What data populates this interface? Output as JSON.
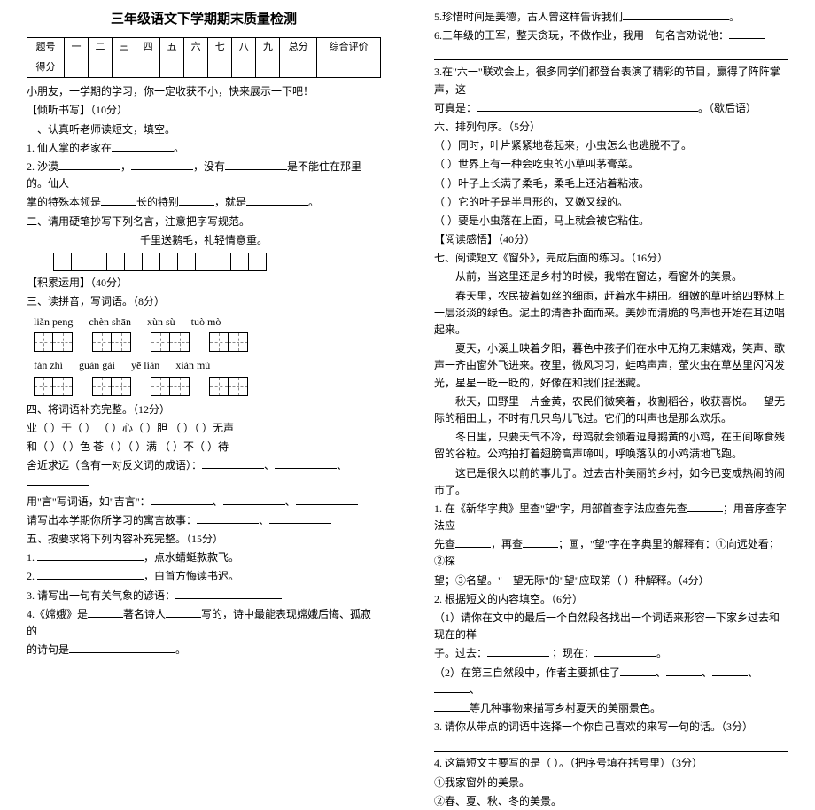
{
  "title": "三年级语文下学期期末质量检测",
  "scoreTable": {
    "row1": [
      "题号",
      "一",
      "二",
      "三",
      "四",
      "五",
      "六",
      "七",
      "八",
      "九",
      "总分",
      "综合评价"
    ],
    "row2Label": "得分"
  },
  "left": {
    "intro": "小朋友，一学期的学习，你一定收获不小，快来展示一下吧！",
    "s1_head": "【倾听书写】（10分）",
    "s1_1": "一、认真听老师读短文，填空。",
    "s1_l1a": "1. 仙人掌的老家在",
    "s1_l1b": "。",
    "s1_l2a": "2. 沙漠",
    "s1_l2b": "，",
    "s1_l2c": "，没有",
    "s1_l2d": "是不能住在那里的。仙人",
    "s1_l3a": "掌的特殊本领是",
    "s1_l3b": "长的特别",
    "s1_l3c": "，就是",
    "s1_l3d": "。",
    "s1_2": "二、请用硬笔抄写下列名言，注意把字写规范。",
    "poem": "千里送鹅毛，礼轻情意重。",
    "s2_head": "【积累运用】（40分）",
    "s2_3": "三、读拼音，写词语。（8分）",
    "pinyin1": [
      "liǎn  peng",
      "chèn  shān",
      "xùn  sù",
      "tuò  mò"
    ],
    "pinyin2": [
      "fán  zhí",
      "guàn gài",
      "yē  liàn",
      "xiàn  mù"
    ],
    "s2_4": "四、将词语补充完整。（12分）",
    "l4_1": "业（   ）于（   ）     （   ）心（   ）胆     （   ）（   ）无声",
    "l4_2": "和（   ）（   ）色     苍（   ）（   ）满     （   ）不（   ）待",
    "l4_3a": "舍近求远（含有一对反义词的成语）：",
    "l4_4a": "用\"言\"写词语，如\"吉言\"：",
    "l4_5": "请写出本学期你所学习的寓言故事：",
    "s2_5": "五、按要求将下列内容补充完整。（15分）",
    "l5_1a": "1. ",
    "l5_1b": "，点水蜻蜓款款飞。",
    "l5_2a": "2. ",
    "l5_2b": "，白首方悔读书迟。",
    "l5_3a": "3. 请写出一句有关气象的谚语：",
    "l5_4a": "4.《嫦娥》是",
    "l5_4b": "著名诗人",
    "l5_4c": "写的，诗中最能表现嫦娥后悔、孤寂的",
    "l5_4d": "的诗句是",
    "l5_4e": "。"
  },
  "right": {
    "l5_5": "5.珍惜时间是美德，古人曾这样告诉我们",
    "l5_5b": "。",
    "l5_6a": "6.三年级的王军，整天贪玩，不做作业，我用一句名言劝说他：",
    "l5_7a": "3.在\"六一\"联欢会上，很多同学们都登台表演了精彩的节目，赢得了阵阵掌声，这",
    "l5_7b": "可真是：",
    "l5_7c": "。（歇后语）",
    "s6_head": "六、排列句序。（5分）",
    "ord1": "（     ）同时，叶片紧紧地卷起来，小虫怎么也逃脱不了。",
    "ord2": "（     ）世界上有一种会吃虫的小草叫茅膏菜。",
    "ord3": "（     ）叶子上长满了柔毛，柔毛上还沾着粘液。",
    "ord4": "（     ）它的叶子是半月形的，又嫩又绿的。",
    "ord5": "（     ）要是小虫落在上面，马上就会被它粘住。",
    "s7_head": "【阅读感悟】（40分）",
    "s7_1": "七、阅读短文《窗外》，完成后面的练习。（16分）",
    "p1": "从前，当这里还是乡村的时候，我常在窗边，看窗外的美景。",
    "p2": "春天里，农民披着如丝的细雨，赶着水牛耕田。细嫩的草叶给四野林上一层淡淡的绿色。泥土的清香扑面而来。美妙而清脆的鸟声也开始在耳边唱起来。",
    "p3": "夏天，小溪上映着夕阳，暮色中孩子们在水中无拘无束嬉戏，笑声、歌声一齐由窗外飞进来。夜里，微风习习，蛙鸣声声，萤火虫在草丛里闪闪发光，星星一眨一眨的，好像在和我们捉迷藏。",
    "p4": "秋天，田野里一片金黄，农民们微笑着，收割稻谷，收获喜悦。一望无际的稻田上，不时有几只鸟儿飞过。它们的叫声也是那么欢乐。",
    "p5": "冬日里，只要天气不冷，母鸡就会领着逗身鹅黄的小鸡，在田间啄食残留的谷粒。公鸡拍打着翅膀高声啼叫，呼唤落队的小鸡满地飞跑。",
    "p6": "这已是很久以前的事儿了。过去古朴美丽的乡村，如今已变成热闹的闹市了。",
    "q1a": "1. 在《新华字典》里查\"望\"字，用部首查字法应查先查",
    "q1b": "；用音序查字法应",
    "q1c": "先查",
    "q1d": "，再查",
    "q1e": "；画，\"望\"字在字典里的解释有：①向远处看；②探",
    "q1f": "望；③名望。\"一望无际\"的\"望\"应取第",
    "q1g": "（   ）种解释。（4分）",
    "q2": "2. 根据短文的内容填空。（6分）",
    "q2_1a": "（1）请你在文中的最后一个自然段各找出一个词语来形容一下家乡过去和现在的样",
    "q2_1b": "子。过去：",
    "q2_1c": "    ；现在：",
    "q2_1d": "。",
    "q2_2a": "（2）在第三自然段中，作者主要抓住了",
    "q2_2b": "、",
    "q2_2c": "、",
    "q2_2d": "、",
    "q2_2e": "、",
    "q2_2f": "等几种事物来描写乡村夏天的美丽景色。",
    "q3": "3. 请你从带点的词语中选择一个你自己喜欢的来写一句的话。（3分）",
    "q4a": "4. 这篇短文主要写的是（          ）。（把序号填在括号里）（3分）",
    "q4_opt1": "①我家窗外的美景。",
    "q4_opt2": "②春、夏、秋、冬的美景。"
  }
}
